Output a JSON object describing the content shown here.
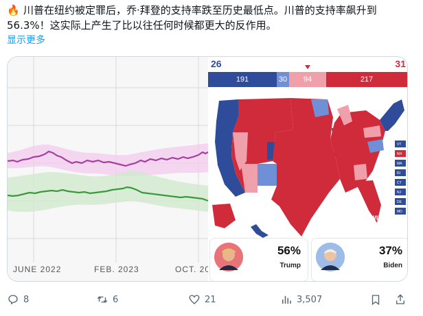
{
  "tweet": {
    "emoji": "🔥",
    "text": "川普在纽约被定罪后，乔·拜登的支持率跌至历史最低点。川普的支持率飙升到56.3%！这实际上产生了比以往任何时候都更大的反作用。",
    "show_more": "显示更多"
  },
  "chart": {
    "x_tick_labels": [
      "JUNE 2022",
      "FEB. 2023",
      "OCT. 20"
    ],
    "colors": {
      "upper_series": "#a63f9e",
      "lower_series": "#3a9a3a"
    }
  },
  "electoral_map": {
    "left_total": "26",
    "right_total": "31",
    "segments": [
      {
        "label": "191",
        "color": "#2f4c9a"
      },
      {
        "label": "30",
        "color": "#6f8fd6"
      },
      {
        "label": "94",
        "color": "#f0a0aa"
      },
      {
        "label": "217",
        "color": "#cf2b3a"
      }
    ],
    "watermark": "270 TO WIN",
    "side_labels": [
      "VT",
      "NH",
      "MA",
      "RI",
      "CT",
      "NJ",
      "DE",
      "MD"
    ]
  },
  "candidates": [
    {
      "name": "Trump",
      "pct": "56%"
    },
    {
      "name": "Biden",
      "pct": "37%"
    }
  ],
  "actions": {
    "reply_count": "8",
    "retweet_count": "6",
    "like_count": "21",
    "view_count": "3,507"
  }
}
